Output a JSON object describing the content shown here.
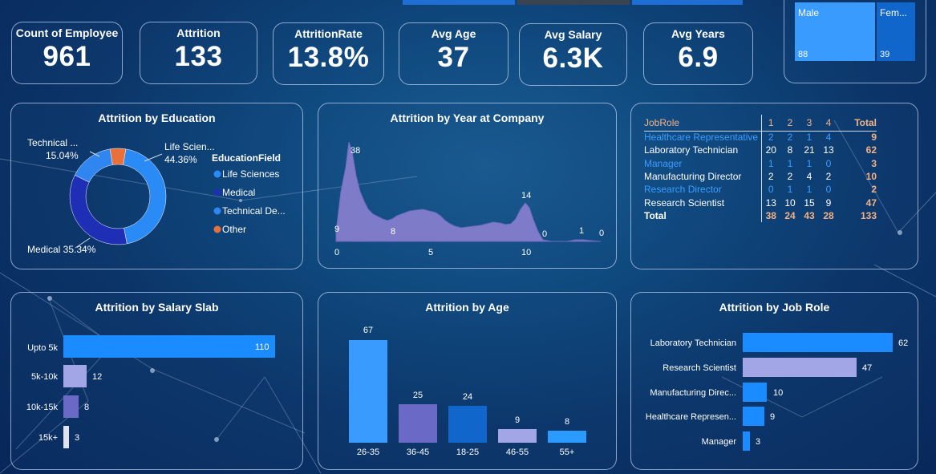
{
  "kpis": [
    {
      "label": "Count of Employee",
      "value": "961"
    },
    {
      "label": "Attrition",
      "value": "133"
    },
    {
      "label": "AttritionRate",
      "value": "13.8%"
    },
    {
      "label": "Avg Age",
      "value": "37"
    },
    {
      "label": "Avg Salary",
      "value": "6.3K"
    },
    {
      "label": "Avg Years",
      "value": "6.9"
    }
  ],
  "gender": {
    "male_label": "Male",
    "male_value": "88",
    "female_label": "Fem...",
    "female_value": "39"
  },
  "education": {
    "title": "Attrition by Education",
    "legend_title": "EducationField",
    "legend": [
      "Life Sciences",
      "Medical",
      "Technical De...",
      "Other"
    ],
    "label_life_name": "Life Scien...",
    "label_life_pct": "44.36%",
    "label_tech_name": "Technical ...",
    "label_tech_pct": "15.04%",
    "label_medical": "Medical 35.34%",
    "colors": [
      "#2a8af6",
      "#1e2fb5",
      "#2f86f0",
      "#e8703a"
    ]
  },
  "year_chart": {
    "title": "Attrition by Year at Company",
    "labels": [
      "38",
      "9",
      "8",
      "14",
      "0",
      "1",
      "0"
    ],
    "ticks": [
      "0",
      "5",
      "10"
    ]
  },
  "matrix": {
    "header": [
      "JobRole",
      "1",
      "2",
      "3",
      "4",
      "Total"
    ],
    "rows": [
      {
        "role": "Healthcare Representative",
        "v1": "2",
        "v2": "2",
        "v3": "1",
        "v4": "4",
        "total": "9"
      },
      {
        "role": "Laboratory Technician",
        "v1": "20",
        "v2": "8",
        "v3": "21",
        "v4": "13",
        "total": "62"
      },
      {
        "role": "Manager",
        "v1": "1",
        "v2": "1",
        "v3": "1",
        "v4": "0",
        "total": "3"
      },
      {
        "role": "Manufacturing Director",
        "v1": "2",
        "v2": "2",
        "v3": "4",
        "v4": "2",
        "total": "10"
      },
      {
        "role": "Research Director",
        "v1": "0",
        "v2": "1",
        "v3": "1",
        "v4": "0",
        "total": "2"
      },
      {
        "role": "Research Scientist",
        "v1": "13",
        "v2": "10",
        "v3": "15",
        "v4": "9",
        "total": "47"
      }
    ],
    "total": {
      "role": "Total",
      "v1": "38",
      "v2": "24",
      "v3": "43",
      "v4": "28",
      "total": "133"
    }
  },
  "salary": {
    "title": "Attrition by Salary Slab",
    "cats": [
      "Upto 5k",
      "5k-10k",
      "10k-15k",
      "15k+"
    ],
    "vals": [
      "110",
      "12",
      "8",
      "3"
    ]
  },
  "age": {
    "title": "Attrition by Age",
    "cats": [
      "26-35",
      "36-45",
      "18-25",
      "46-55",
      "55+"
    ],
    "vals": [
      "67",
      "25",
      "24",
      "9",
      "8"
    ]
  },
  "jobrole": {
    "title": "Attrition by Job Role",
    "cats": [
      "Laboratory Technician",
      "Research Scientist",
      "Manufacturing Direc...",
      "Healthcare Represen...",
      "Manager"
    ],
    "vals": [
      "62",
      "47",
      "10",
      "9",
      "3"
    ]
  }
}
